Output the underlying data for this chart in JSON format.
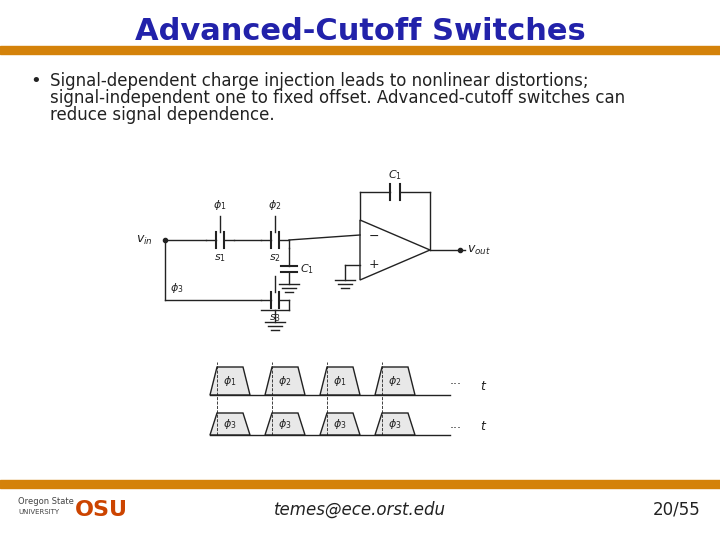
{
  "title": "Advanced-Cutoff Switches",
  "title_color": "#2222AA",
  "title_fontsize": 22,
  "bullet_text_line1": "Signal-dependent charge injection leads to nonlinear distortions;",
  "bullet_text_line2": "signal-independent one to fixed offset. Advanced-cutoff switches can",
  "bullet_text_line3": "reduce signal dependence.",
  "bullet_fontsize": 12,
  "bullet_color": "#1a1a1a",
  "separator_color": "#D4820A",
  "footer_email": "temes@ece.orst.edu",
  "footer_page": "20/55",
  "footer_fontsize": 12,
  "bg_color": "#ffffff",
  "osu_color": "#CC4400",
  "line_color": "#222222",
  "line_width": 1.0
}
